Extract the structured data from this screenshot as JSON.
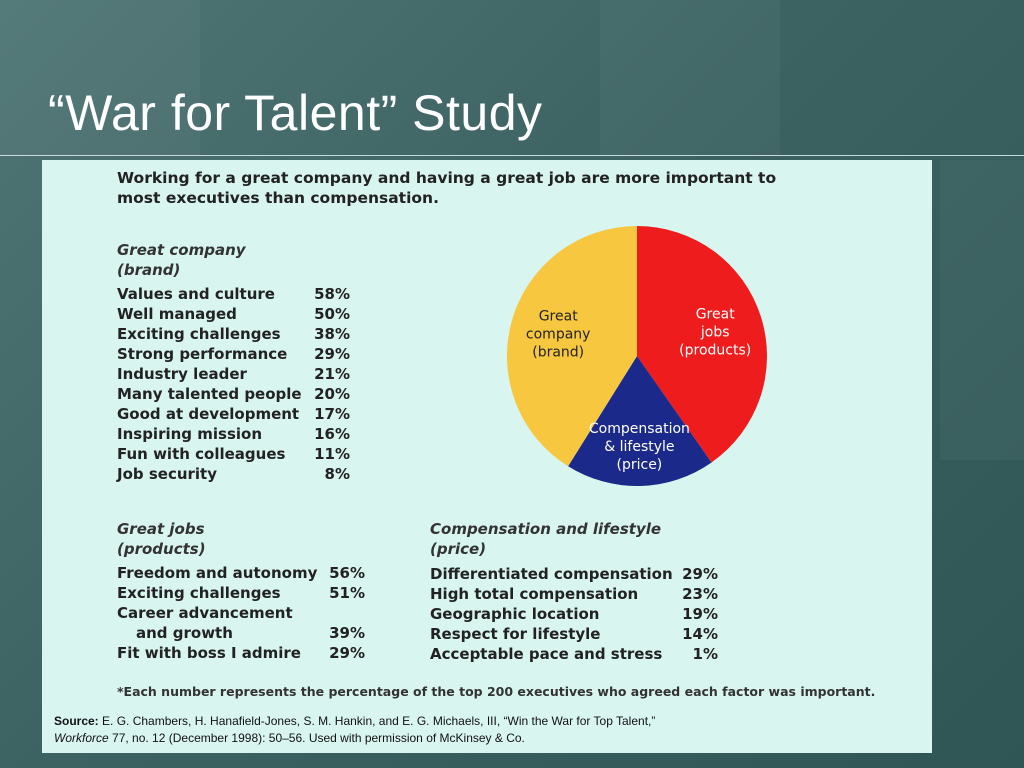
{
  "slide": {
    "title": "“War for Talent” Study"
  },
  "figure": {
    "headline": "Working for a great company and having a great job are more important to most executives than compensation.",
    "great_company": {
      "title_line1": "Great company",
      "title_line2": "(brand)",
      "items": [
        {
          "label": "Values and culture",
          "value": "58%"
        },
        {
          "label": "Well managed",
          "value": "50%"
        },
        {
          "label": "Exciting challenges",
          "value": "38%"
        },
        {
          "label": "Strong performance",
          "value": "29%"
        },
        {
          "label": "Industry leader",
          "value": "21%"
        },
        {
          "label": "Many talented people",
          "value": "20%"
        },
        {
          "label": "Good at development",
          "value": "17%"
        },
        {
          "label": "Inspiring mission",
          "value": "16%"
        },
        {
          "label": "Fun with colleagues",
          "value": "11%"
        },
        {
          "label": "Job security",
          "value": "8%"
        }
      ]
    },
    "great_jobs": {
      "title_line1": "Great jobs",
      "title_line2": "(products)",
      "items": [
        {
          "label": "Freedom and autonomy",
          "value": "56%"
        },
        {
          "label": "Exciting challenges",
          "value": "51%"
        },
        {
          "label": "Career advancement",
          "value": ""
        },
        {
          "label": "and growth",
          "value": "39%"
        },
        {
          "label": "Fit with boss I admire",
          "value": "29%"
        }
      ]
    },
    "compensation": {
      "title_line1": "Compensation and lifestyle",
      "title_line2": "(price)",
      "items": [
        {
          "label": "Differentiated compensation",
          "value": "29%"
        },
        {
          "label": "High total compensation",
          "value": "23%"
        },
        {
          "label": "Geographic location",
          "value": "19%"
        },
        {
          "label": "Respect for lifestyle",
          "value": "14%"
        },
        {
          "label": "Acceptable pace and stress",
          "value": "1%"
        }
      ]
    },
    "footnote": "*Each number represents the percentage of the top 200 executives who agreed each factor was important.",
    "source": {
      "label": "Source:",
      "text_before": "E. G. Chambers, H. Hanafield-Jones, S. M. Hankin, and E. G. Michaels, III, “Win the War for Top Talent,” ",
      "journal": "Workforce",
      "text_after": " 77, no. 12 (December 1998): 50–56. Used with permission of McKinsey & Co."
    }
  },
  "chart_data": {
    "type": "pie",
    "title": "",
    "slices": [
      {
        "name": "Great jobs (products)",
        "label_lines": [
          "Great",
          "jobs",
          "(products)"
        ],
        "color": "#ee1c1c",
        "text_color": "#ffffff",
        "start_deg": 0,
        "end_deg": 145
      },
      {
        "name": "Compensation & lifestyle (price)",
        "label_lines": [
          "Compensation",
          "& lifestyle",
          "(price)"
        ],
        "color": "#1b2a8a",
        "text_color": "#ffffff",
        "start_deg": 145,
        "end_deg": 212
      },
      {
        "name": "Great company (brand)",
        "label_lines": [
          "Great",
          "company",
          "(brand)"
        ],
        "color": "#f7c73f",
        "text_color": "#222222",
        "start_deg": 212,
        "end_deg": 360
      }
    ]
  }
}
